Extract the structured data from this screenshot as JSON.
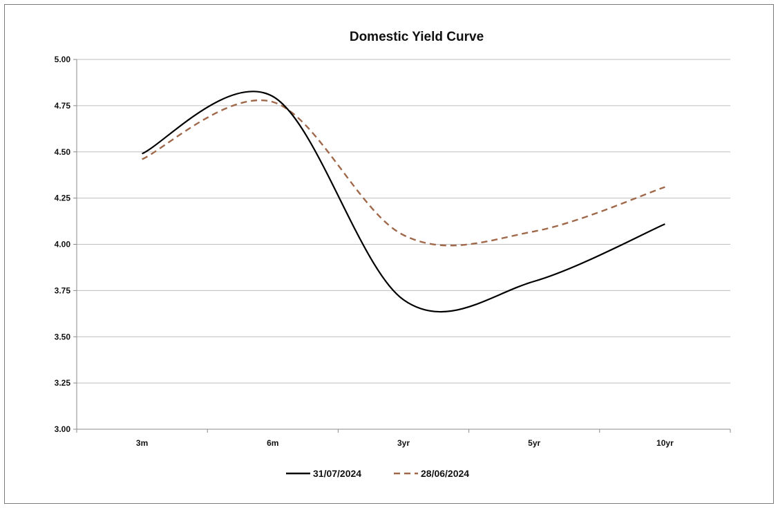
{
  "chart_data": {
    "type": "line",
    "title": "Domestic Yield Curve",
    "xlabel": "",
    "ylabel": "",
    "categories": [
      "3m",
      "6m",
      "3yr",
      "5yr",
      "10yr"
    ],
    "ylim": [
      3.0,
      5.0
    ],
    "yticks": [
      "5.00",
      "4.75",
      "4.50",
      "4.25",
      "4.00",
      "3.75",
      "3.50",
      "3.25",
      "3.00"
    ],
    "grid": true,
    "smooth": true,
    "legend_position": "bottom",
    "series": [
      {
        "name": "31/07/2024",
        "values": [
          4.49,
          4.8,
          3.7,
          3.8,
          4.11
        ],
        "color": "#000000",
        "style": "solid"
      },
      {
        "name": "28/06/2024",
        "values": [
          4.46,
          4.77,
          4.05,
          4.07,
          4.31
        ],
        "color": "#a0684a",
        "style": "dashed"
      }
    ]
  }
}
